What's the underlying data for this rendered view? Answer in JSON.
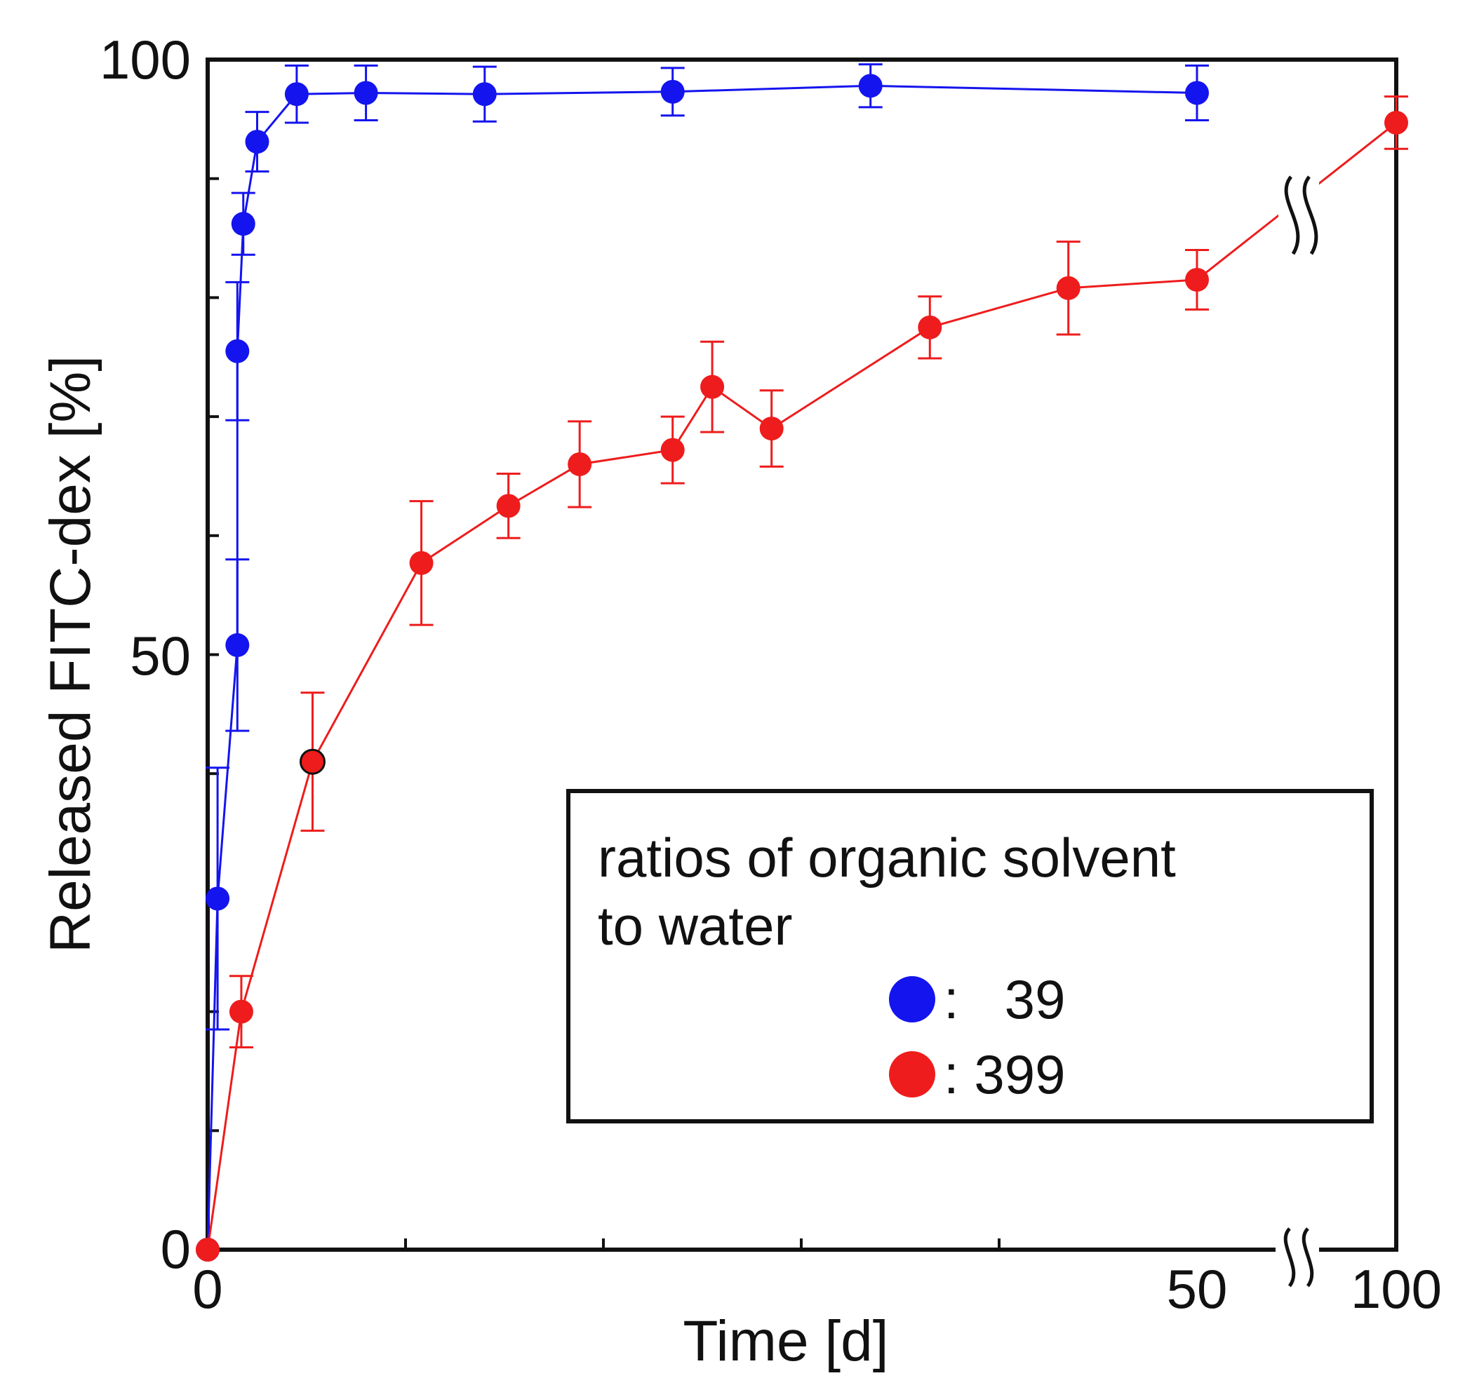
{
  "chart_data": {
    "type": "line",
    "xlabel": "Time [d]",
    "ylabel": "Released FITC-dex [%]",
    "xlim": [
      0,
      100
    ],
    "ylim": [
      0,
      100
    ],
    "x_axis_break": "between 50 and 100",
    "x_ticks": [
      0,
      50,
      100
    ],
    "x_tick_labels": [
      "0",
      "50",
      "100"
    ],
    "y_ticks": [
      0,
      50,
      100
    ],
    "y_tick_labels": [
      "0",
      "50",
      "100"
    ],
    "legend": {
      "title": "ratios of organic solvent to water",
      "position": "bottom-right",
      "entries": [
        {
          "series": "39",
          "label": ":   39"
        },
        {
          "series": "399",
          "label": ": 399"
        }
      ]
    },
    "series": [
      {
        "name": "39",
        "color": "#1414ee",
        "x": [
          0,
          0.5,
          1.5,
          1.5,
          1.8,
          2.5,
          4.5,
          8,
          14,
          23.5,
          33.5,
          50
        ],
        "y": [
          0,
          29.5,
          50.8,
          75.5,
          86.2,
          93.1,
          97.1,
          97.2,
          97.1,
          97.3,
          97.8,
          97.2
        ],
        "err": [
          0,
          11,
          7.2,
          5.8,
          2.6,
          2.5,
          2.4,
          2.3,
          2.3,
          2,
          1.8,
          2.3
        ]
      },
      {
        "name": "399",
        "color": "#ee1c1c",
        "x": [
          0,
          1.7,
          5.3,
          10.8,
          15.2,
          18.8,
          23.5,
          25.5,
          28.5,
          36.5,
          43.5,
          50,
          100
        ],
        "y": [
          0,
          20,
          41,
          57.7,
          62.5,
          66,
          67.2,
          72.5,
          69,
          77.5,
          80.8,
          81.5,
          94.7
        ],
        "err": [
          0,
          3,
          5.8,
          5.2,
          2.7,
          3.6,
          2.8,
          3.8,
          3.2,
          2.6,
          3.9,
          2.5,
          2.2
        ]
      }
    ]
  }
}
